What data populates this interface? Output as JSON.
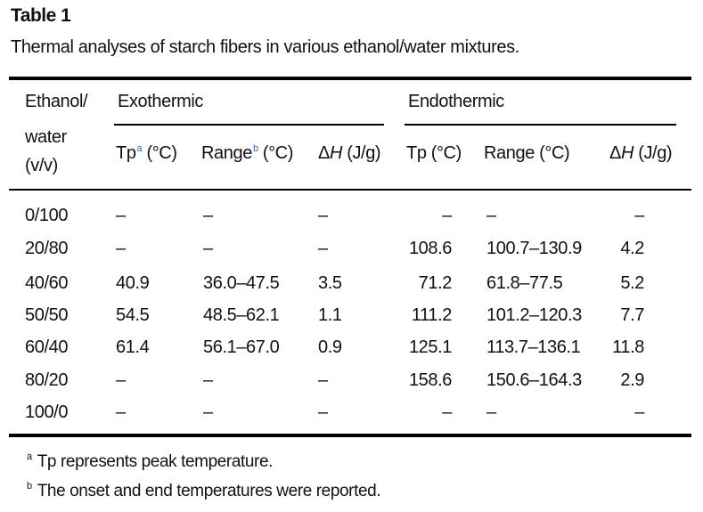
{
  "table": {
    "title": "Table 1",
    "caption": "Thermal analyses of starch fibers in various ethanol/water mixtures.",
    "stub_header": [
      "Ethanol/",
      "water",
      "(v/v)"
    ],
    "group_headers": {
      "exothermic": "Exothermic",
      "endothermic": "Endothermic"
    },
    "column_headers": {
      "exo_tp": {
        "text": "Tp",
        "sup": "a",
        "unit": "(°C)"
      },
      "exo_range": {
        "text": "Range",
        "sup": "b",
        "unit": "(°C)"
      },
      "exo_dh": {
        "symbol": "Δ",
        "var": "H",
        "unit": "(J/g)"
      },
      "endo_tp": {
        "text": "Tp (°C)"
      },
      "endo_range": {
        "text": "Range (°C)"
      },
      "endo_dh": {
        "symbol": "Δ",
        "var": "H",
        "unit": "(J/g)"
      }
    },
    "rows": [
      {
        "ratio": "0/100",
        "exo_tp": "–",
        "exo_range": "–",
        "exo_dh": "–",
        "endo_tp": "–",
        "endo_range": "–",
        "endo_dh": "–"
      },
      {
        "ratio": "20/80",
        "exo_tp": "–",
        "exo_range": "–",
        "exo_dh": "–",
        "endo_tp": "108.6",
        "endo_range": "100.7–130.9",
        "endo_dh": "4.2"
      },
      {
        "ratio": "40/60",
        "exo_tp": "40.9",
        "exo_range": "36.0–47.5",
        "exo_dh": "3.5",
        "endo_tp": "71.2",
        "endo_range": "61.8–77.5",
        "endo_dh": "5.2"
      },
      {
        "ratio": "50/50",
        "exo_tp": "54.5",
        "exo_range": "48.5–62.1",
        "exo_dh": "1.1",
        "endo_tp": "111.2",
        "endo_range": "101.2–120.3",
        "endo_dh": "7.7"
      },
      {
        "ratio": "60/40",
        "exo_tp": "61.4",
        "exo_range": "56.1–67.0",
        "exo_dh": "0.9",
        "endo_tp": "125.1",
        "endo_range": "113.7–136.1",
        "endo_dh": "11.8"
      },
      {
        "ratio": "80/20",
        "exo_tp": "–",
        "exo_range": "–",
        "exo_dh": "–",
        "endo_tp": "158.6",
        "endo_range": "150.6–164.3",
        "endo_dh": "2.9"
      },
      {
        "ratio": "100/0",
        "exo_tp": "–",
        "exo_range": "–",
        "exo_dh": "–",
        "endo_tp": "–",
        "endo_range": "–",
        "endo_dh": "–"
      }
    ],
    "footnotes": [
      {
        "mark": "a",
        "text": "Tp represents peak temperature."
      },
      {
        "mark": "b",
        "text": "The onset and end temperatures were reported."
      }
    ]
  }
}
